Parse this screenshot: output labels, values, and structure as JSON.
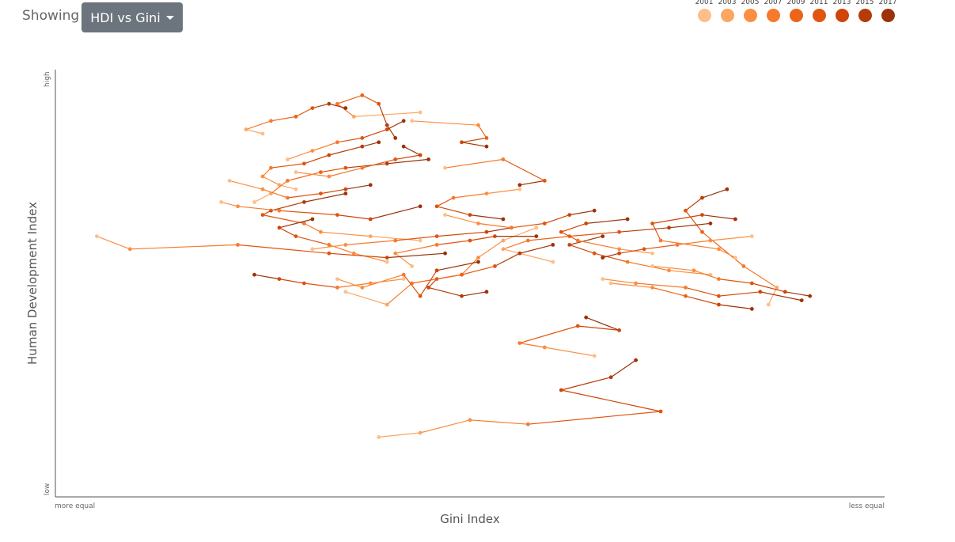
{
  "controls": {
    "showing_label": "Showing",
    "dropdown_label": "HDI vs Gini"
  },
  "legend": [
    {
      "year": "2001",
      "color": "#fdbf88"
    },
    {
      "year": "2003",
      "color": "#fca661"
    },
    {
      "year": "2005",
      "color": "#fb8e40"
    },
    {
      "year": "2007",
      "color": "#f67a2b"
    },
    {
      "year": "2009",
      "color": "#ec6417"
    },
    {
      "year": "2011",
      "color": "#e0550f"
    },
    {
      "year": "2013",
      "color": "#cf4608"
    },
    {
      "year": "2015",
      "color": "#b63c06"
    },
    {
      "year": "2017",
      "color": "#9c3208"
    }
  ],
  "chart_data": {
    "type": "scatter",
    "title": "",
    "xlabel": "Gini Index",
    "ylabel": "Human Development Index",
    "x_tick_labels": [
      "more equal",
      "less equal"
    ],
    "y_tick_labels": [
      "low",
      "high"
    ],
    "xlim": [
      0,
      1
    ],
    "ylim": [
      0,
      1
    ],
    "grid": false,
    "legend_position": "top-right",
    "series": [
      {
        "values": [
          [
            0.43,
            0.88
          ],
          [
            0.51,
            0.87
          ],
          [
            0.52,
            0.84
          ],
          [
            0.49,
            0.83
          ],
          [
            0.52,
            0.82
          ]
        ]
      },
      {
        "values": [
          [
            0.47,
            0.77
          ],
          [
            0.54,
            0.79
          ],
          [
            0.59,
            0.74
          ],
          [
            0.56,
            0.73
          ]
        ]
      },
      {
        "values": [
          [
            0.86,
            0.45
          ],
          [
            0.87,
            0.49
          ],
          [
            0.83,
            0.54
          ],
          [
            0.78,
            0.62
          ],
          [
            0.76,
            0.67
          ],
          [
            0.78,
            0.7
          ],
          [
            0.81,
            0.72
          ]
        ]
      },
      {
        "values": [
          [
            0.82,
            0.56
          ],
          [
            0.8,
            0.58
          ],
          [
            0.73,
            0.6
          ],
          [
            0.72,
            0.64
          ],
          [
            0.78,
            0.66
          ],
          [
            0.82,
            0.65
          ]
        ]
      },
      {
        "values": [
          [
            0.65,
            0.33
          ],
          [
            0.59,
            0.35
          ],
          [
            0.56,
            0.36
          ],
          [
            0.63,
            0.4
          ],
          [
            0.68,
            0.39
          ],
          [
            0.64,
            0.42
          ]
        ]
      },
      {
        "values": [
          [
            0.39,
            0.14
          ],
          [
            0.44,
            0.15
          ],
          [
            0.5,
            0.18
          ],
          [
            0.57,
            0.17
          ],
          [
            0.73,
            0.2
          ],
          [
            0.61,
            0.25
          ],
          [
            0.67,
            0.28
          ],
          [
            0.7,
            0.32
          ]
        ]
      },
      {
        "values": [
          [
            0.44,
            0.9
          ],
          [
            0.36,
            0.89
          ],
          [
            0.34,
            0.92
          ],
          [
            0.37,
            0.94
          ],
          [
            0.39,
            0.92
          ],
          [
            0.4,
            0.87
          ],
          [
            0.41,
            0.84
          ]
        ]
      },
      {
        "values": [
          [
            0.44,
            0.6
          ],
          [
            0.38,
            0.61
          ],
          [
            0.32,
            0.62
          ],
          [
            0.3,
            0.64
          ],
          [
            0.25,
            0.66
          ],
          [
            0.26,
            0.67
          ],
          [
            0.3,
            0.69
          ],
          [
            0.35,
            0.71
          ]
        ]
      },
      {
        "values": [
          [
            0.29,
            0.72
          ],
          [
            0.27,
            0.73
          ],
          [
            0.25,
            0.75
          ],
          [
            0.26,
            0.77
          ],
          [
            0.3,
            0.78
          ],
          [
            0.33,
            0.8
          ],
          [
            0.37,
            0.82
          ],
          [
            0.39,
            0.83
          ]
        ]
      },
      {
        "values": [
          [
            0.58,
            0.63
          ],
          [
            0.54,
            0.6
          ],
          [
            0.51,
            0.56
          ],
          [
            0.49,
            0.52
          ],
          [
            0.46,
            0.51
          ],
          [
            0.45,
            0.49
          ],
          [
            0.49,
            0.47
          ],
          [
            0.52,
            0.48
          ]
        ]
      },
      {
        "values": [
          [
            0.6,
            0.55
          ],
          [
            0.54,
            0.58
          ],
          [
            0.57,
            0.6
          ],
          [
            0.62,
            0.61
          ],
          [
            0.68,
            0.62
          ],
          [
            0.74,
            0.63
          ],
          [
            0.79,
            0.64
          ]
        ]
      },
      {
        "values": [
          [
            0.35,
            0.48
          ],
          [
            0.4,
            0.45
          ],
          [
            0.43,
            0.5
          ],
          [
            0.49,
            0.52
          ],
          [
            0.53,
            0.54
          ],
          [
            0.56,
            0.57
          ],
          [
            0.6,
            0.59
          ]
        ]
      },
      {
        "values": [
          [
            0.79,
            0.52
          ],
          [
            0.74,
            0.53
          ],
          [
            0.69,
            0.55
          ],
          [
            0.65,
            0.57
          ],
          [
            0.62,
            0.59
          ],
          [
            0.66,
            0.61
          ]
        ]
      },
      {
        "values": [
          [
            0.72,
            0.57
          ],
          [
            0.68,
            0.58
          ],
          [
            0.63,
            0.6
          ],
          [
            0.61,
            0.62
          ],
          [
            0.64,
            0.64
          ],
          [
            0.69,
            0.65
          ]
        ]
      },
      {
        "values": [
          [
            0.4,
            0.55
          ],
          [
            0.36,
            0.57
          ],
          [
            0.33,
            0.59
          ],
          [
            0.29,
            0.61
          ],
          [
            0.27,
            0.63
          ],
          [
            0.31,
            0.65
          ]
        ]
      },
      {
        "values": [
          [
            0.31,
            0.58
          ],
          [
            0.35,
            0.59
          ],
          [
            0.41,
            0.6
          ],
          [
            0.46,
            0.61
          ],
          [
            0.52,
            0.62
          ],
          [
            0.55,
            0.63
          ]
        ]
      },
      {
        "values": [
          [
            0.84,
            0.61
          ],
          [
            0.79,
            0.6
          ],
          [
            0.75,
            0.59
          ],
          [
            0.71,
            0.58
          ],
          [
            0.68,
            0.57
          ],
          [
            0.66,
            0.56
          ]
        ]
      },
      {
        "values": [
          [
            0.43,
            0.54
          ],
          [
            0.41,
            0.57
          ],
          [
            0.46,
            0.59
          ],
          [
            0.5,
            0.6
          ],
          [
            0.53,
            0.61
          ],
          [
            0.58,
            0.61
          ]
        ]
      },
      {
        "values": [
          [
            0.25,
            0.85
          ],
          [
            0.23,
            0.86
          ],
          [
            0.26,
            0.88
          ],
          [
            0.29,
            0.89
          ],
          [
            0.31,
            0.91
          ],
          [
            0.33,
            0.92
          ],
          [
            0.35,
            0.91
          ]
        ]
      },
      {
        "values": [
          [
            0.24,
            0.69
          ],
          [
            0.26,
            0.71
          ],
          [
            0.28,
            0.74
          ],
          [
            0.32,
            0.76
          ],
          [
            0.35,
            0.77
          ],
          [
            0.4,
            0.78
          ],
          [
            0.45,
            0.79
          ]
        ]
      },
      {
        "values": [
          [
            0.05,
            0.61
          ],
          [
            0.09,
            0.58
          ],
          [
            0.22,
            0.59
          ],
          [
            0.33,
            0.57
          ],
          [
            0.4,
            0.56
          ],
          [
            0.47,
            0.57
          ]
        ]
      },
      {
        "values": [
          [
            0.34,
            0.51
          ],
          [
            0.37,
            0.49
          ],
          [
            0.42,
            0.52
          ],
          [
            0.44,
            0.47
          ],
          [
            0.46,
            0.53
          ],
          [
            0.51,
            0.55
          ]
        ]
      },
      {
        "values": [
          [
            0.72,
            0.54
          ],
          [
            0.77,
            0.53
          ],
          [
            0.8,
            0.51
          ],
          [
            0.84,
            0.5
          ],
          [
            0.88,
            0.48
          ],
          [
            0.91,
            0.47
          ]
        ]
      },
      {
        "values": [
          [
            0.66,
            0.51
          ],
          [
            0.7,
            0.5
          ],
          [
            0.76,
            0.49
          ],
          [
            0.8,
            0.47
          ],
          [
            0.85,
            0.48
          ],
          [
            0.9,
            0.46
          ]
        ]
      },
      {
        "values": [
          [
            0.2,
            0.69
          ],
          [
            0.22,
            0.68
          ],
          [
            0.27,
            0.67
          ],
          [
            0.34,
            0.66
          ],
          [
            0.38,
            0.65
          ],
          [
            0.44,
            0.68
          ]
        ]
      },
      {
        "values": [
          [
            0.21,
            0.74
          ],
          [
            0.25,
            0.72
          ],
          [
            0.28,
            0.7
          ],
          [
            0.32,
            0.71
          ],
          [
            0.35,
            0.72
          ],
          [
            0.38,
            0.73
          ]
        ]
      },
      {
        "values": [
          [
            0.56,
            0.72
          ],
          [
            0.52,
            0.71
          ],
          [
            0.48,
            0.7
          ],
          [
            0.46,
            0.68
          ],
          [
            0.5,
            0.66
          ],
          [
            0.54,
            0.65
          ]
        ]
      },
      {
        "values": [
          [
            0.47,
            0.66
          ],
          [
            0.51,
            0.64
          ],
          [
            0.55,
            0.63
          ],
          [
            0.59,
            0.64
          ],
          [
            0.62,
            0.66
          ],
          [
            0.65,
            0.67
          ]
        ]
      },
      {
        "values": [
          [
            0.67,
            0.5
          ],
          [
            0.72,
            0.49
          ],
          [
            0.76,
            0.47
          ],
          [
            0.8,
            0.45
          ],
          [
            0.84,
            0.44
          ]
        ]
      },
      {
        "values": [
          [
            0.42,
            0.51
          ],
          [
            0.38,
            0.5
          ],
          [
            0.34,
            0.49
          ],
          [
            0.3,
            0.5
          ],
          [
            0.27,
            0.51
          ],
          [
            0.24,
            0.52
          ]
        ]
      },
      {
        "values": [
          [
            0.28,
            0.79
          ],
          [
            0.31,
            0.81
          ],
          [
            0.34,
            0.83
          ],
          [
            0.37,
            0.84
          ],
          [
            0.4,
            0.86
          ],
          [
            0.42,
            0.88
          ]
        ]
      },
      {
        "values": [
          [
            0.29,
            0.76
          ],
          [
            0.33,
            0.75
          ],
          [
            0.37,
            0.77
          ],
          [
            0.41,
            0.79
          ],
          [
            0.44,
            0.8
          ],
          [
            0.42,
            0.82
          ]
        ]
      }
    ]
  }
}
